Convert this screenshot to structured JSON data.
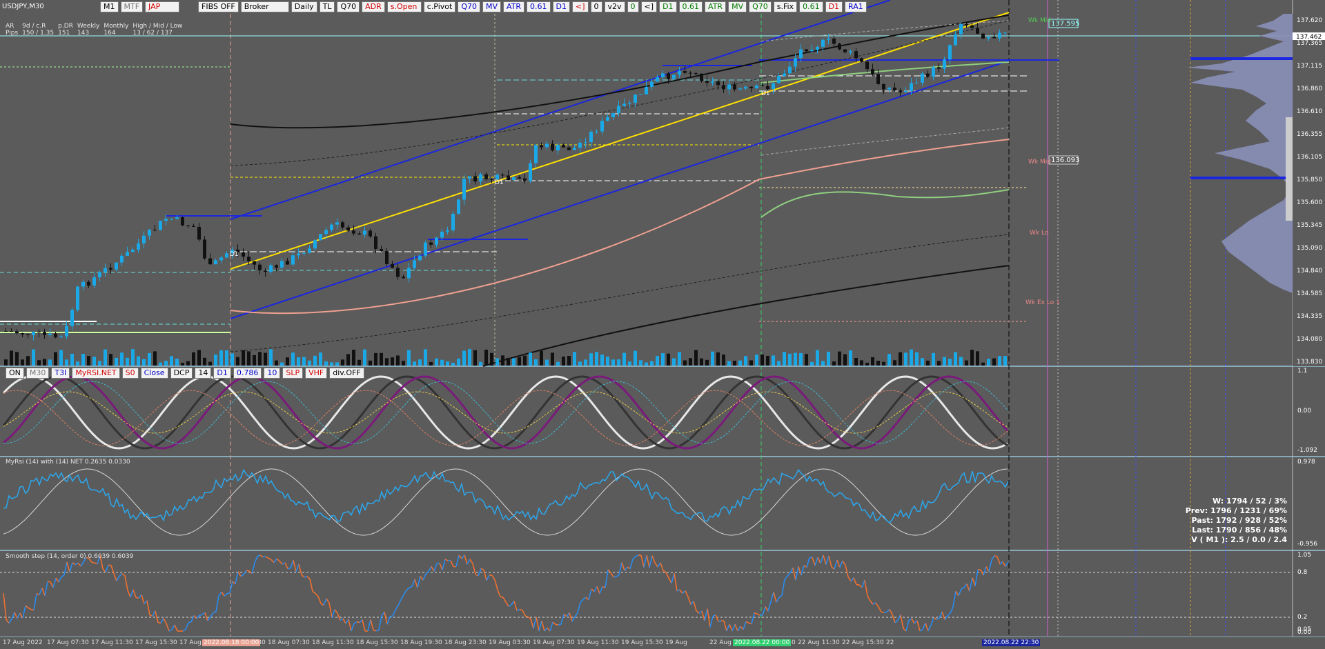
{
  "symbol_label": "USDJPY,M30",
  "top_toolbar": [
    "M1",
    "MTF",
    "JAP",
    "FIBS OFF",
    "Broker",
    "Daily",
    "TL",
    "Q70",
    "ADR",
    "s.Open",
    "c.Pivot",
    "Q70",
    "MV",
    "ATR",
    "0.61",
    "D1",
    "<]",
    "0",
    "v2v",
    "0",
    "<]",
    "D1",
    "0.61",
    "ATR",
    "MV",
    "Q70",
    "s.Fix",
    "0.61",
    "D1",
    "RA1"
  ],
  "stats": {
    "row1": [
      "AR",
      "9d / c.R",
      "p.DR",
      "Weekly",
      "Monthly",
      "High / Mid / Low"
    ],
    "row2": [
      "Pips",
      "150 / 1.35",
      "151",
      "143",
      "164",
      "13 / 62 / 137"
    ]
  },
  "price_axis": [
    "137.620",
    "137.365",
    "137.115",
    "136.860",
    "136.610",
    "136.355",
    "136.105",
    "135.850",
    "135.600",
    "135.345",
    "135.090",
    "134.840",
    "134.585",
    "134.335",
    "134.080",
    "133.830"
  ],
  "current_price": "137.462",
  "level_tags": [
    {
      "text": "Wk Mid",
      "tag": "137.595"
    },
    {
      "text": "Wk Mid",
      "tag": "136.093"
    },
    {
      "text": "Wk Lo",
      "tag": ""
    },
    {
      "text": "Wk Ex Lo 1",
      "tag": ""
    }
  ],
  "d1_labels": [
    "D1",
    "D1",
    "D1"
  ],
  "osc_toolbar": [
    "ON",
    "M30",
    "T3I",
    "MyRSI.NET",
    "S0",
    "Close",
    "DCP",
    "14",
    "D1",
    "0.786",
    "10",
    "SLP",
    "VHF",
    "div.OFF"
  ],
  "osc_axis": [
    "1.1",
    "0.00",
    "-1.092"
  ],
  "rsi_title": "MyRsi (14) with (14) NET 0.2635 0.0330",
  "rsi_axis": [
    "0.978",
    "-0.956"
  ],
  "smooth_title": "Smooth step (14, order 0) 0.6039 0.6039",
  "smooth_axis": [
    "1.05",
    "0.8",
    "0.2",
    "0.05",
    "0.00"
  ],
  "info_panel": [
    "W: 1794 / 52 / 3%",
    "Prev: 1796 / 1231 / 69%",
    "Past: 1792 / 928 / 52%",
    "Last: 1790 / 856 / 48%",
    "V ( M1 ): 2.5 / 0.0 / 2.4"
  ],
  "time_labels": [
    "17 Aug 2022",
    "17 Aug 07:30",
    "17 Aug 11:30",
    "17 Aug 15:30",
    "17 Aug",
    "18 Aug 03:30",
    "18 Aug 07:30",
    "18 Aug 11:30",
    "18 Aug 15:30",
    "18 Aug 19:30",
    "18 Aug 23:30",
    "19 Aug 03:30",
    "19 Aug 07:30",
    "19 Aug 11:30",
    "19 Aug 15:30",
    "19 Aug",
    "22 Aug 03:30",
    "22 Aug 07:30",
    "22 Aug 11:30",
    "22 Aug 15:30",
    "22"
  ],
  "time_highlights": [
    "2022.08.18 00:00",
    "2022.08.22 00:00",
    "2022.08.22 22:30"
  ],
  "colors": {
    "bg": "#5b5b5b",
    "bull": "#1ba8e6",
    "bear": "#111111",
    "channel": "#1a26e0",
    "fib": "#ffe000",
    "ma": "#f0a090"
  }
}
